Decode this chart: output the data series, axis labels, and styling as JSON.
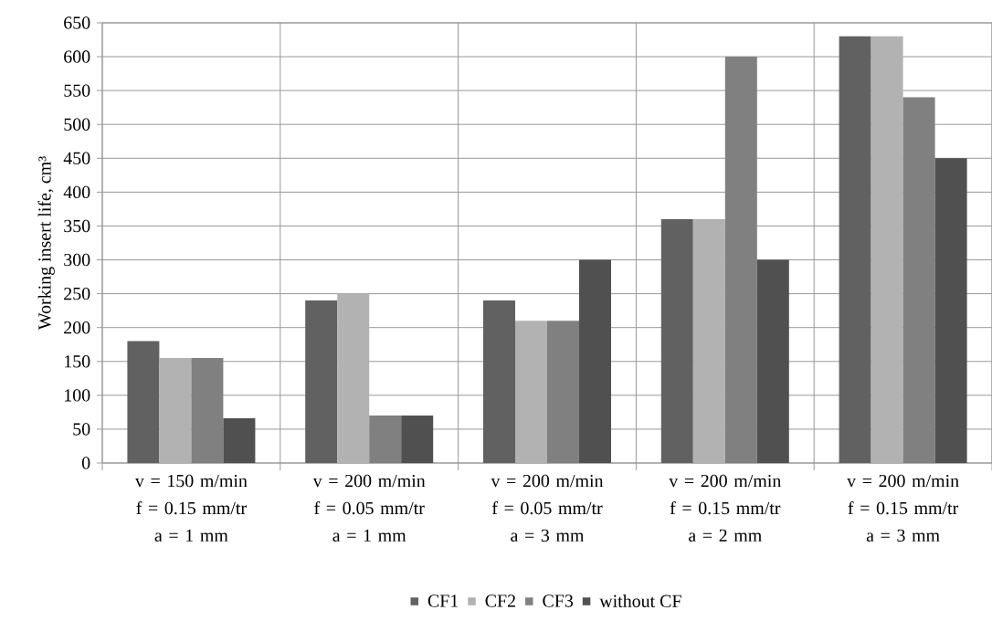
{
  "chart_data": {
    "type": "bar",
    "ylabel": "Working insert life, cm³",
    "categories": [
      "v = 150 m/min f = 0.15 mm/tr a = 1 mm",
      "v = 200 m/min f = 0.05 mm/tr a = 1 mm",
      "v = 200 m/min f = 0.05 mm/tr a = 3 mm",
      "v = 200 m/min f = 0.15 mm/tr a = 2 mm",
      "v = 200 m/min f = 0.15 mm/tr a = 3 mm"
    ],
    "series": [
      {
        "name": "CF1",
        "color": "#616161",
        "values": [
          180,
          240,
          240,
          360,
          630
        ]
      },
      {
        "name": "CF2",
        "color": "#b2b2b2",
        "values": [
          155,
          250,
          210,
          360,
          630
        ]
      },
      {
        "name": "CF3",
        "color": "#808080",
        "values": [
          155,
          70,
          210,
          600,
          540
        ]
      },
      {
        "name": "without CF",
        "color": "#505050",
        "values": [
          66,
          70,
          300,
          300,
          450
        ]
      }
    ],
    "ylim": [
      0,
      650
    ],
    "yticks": [
      0,
      50,
      100,
      150,
      200,
      250,
      300,
      350,
      400,
      450,
      500,
      550,
      600,
      650
    ],
    "grid": true,
    "legend": "bottom"
  }
}
